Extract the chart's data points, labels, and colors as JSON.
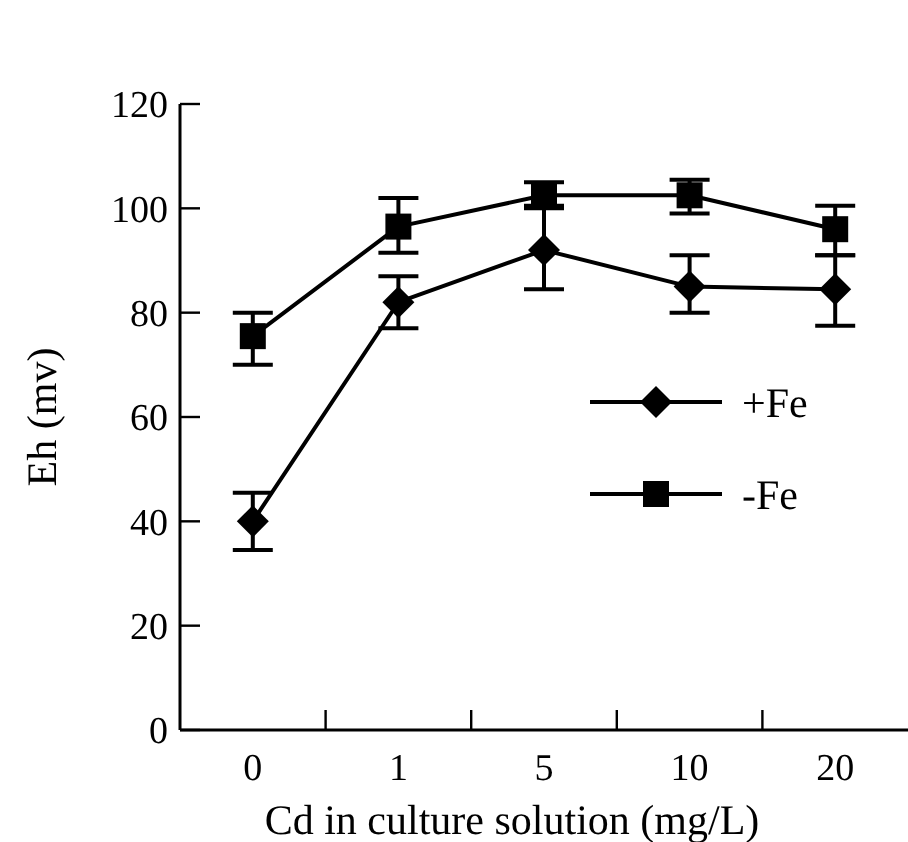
{
  "chart_data": {
    "type": "line",
    "xlabel": "Cd in culture solution (mg/L)",
    "ylabel": "Eh (mv)",
    "categories": [
      "0",
      "1",
      "5",
      "10",
      "20"
    ],
    "series": [
      {
        "name": "+Fe",
        "color": "#000000",
        "marker": "diamond",
        "values": [
          40,
          82,
          92,
          85,
          84.5
        ],
        "errors": [
          [
            34.5,
            45.5
          ],
          [
            77,
            87
          ],
          [
            84.5,
            100.5
          ],
          [
            80,
            91
          ],
          [
            77.5,
            91
          ]
        ]
      },
      {
        "name": "-Fe",
        "color": "#000000",
        "marker": "square",
        "values": [
          75.5,
          96.5,
          102.5,
          102.5,
          96
        ],
        "errors": [
          [
            70,
            80
          ],
          [
            91.5,
            102
          ],
          [
            100,
            105
          ],
          [
            99,
            105.5
          ],
          [
            91,
            100.5
          ]
        ]
      }
    ],
    "ylim": [
      0,
      120
    ],
    "yticks": [
      0,
      20,
      40,
      60,
      80,
      100,
      120
    ],
    "grid": false,
    "legend": "right",
    "line_style": "solid"
  }
}
